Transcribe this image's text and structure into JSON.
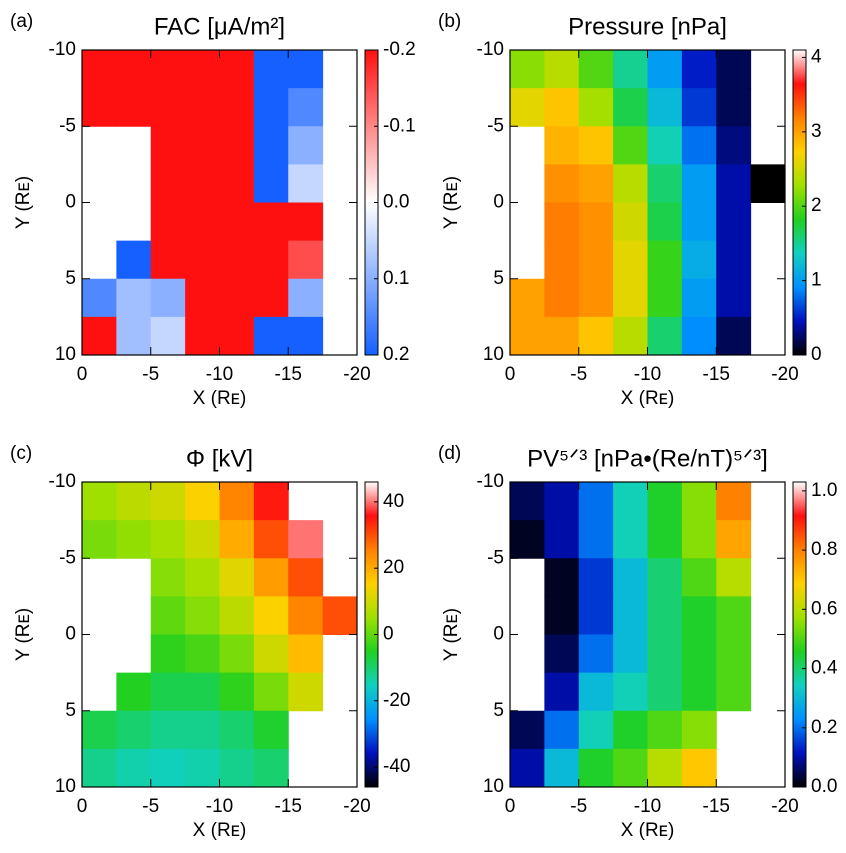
{
  "chart_data": [
    {
      "type": "heatmap",
      "panel_label": "(a)",
      "title": "FAC [μA/m²]",
      "x_label": "X (Rᴇ)",
      "y_label": "Y (Rᴇ)",
      "x": [
        -1.25,
        -3.75,
        -6.25,
        -8.75,
        -11.25,
        -13.75,
        -16.25,
        -18.75
      ],
      "y": [
        -8.75,
        -6.25,
        -3.75,
        -1.25,
        1.25,
        3.75,
        6.25,
        8.75
      ],
      "z": [
        [
          -0.2,
          -0.2,
          -0.2,
          -0.2,
          -0.2,
          0.2,
          0.2,
          null
        ],
        [
          -0.2,
          -0.2,
          -0.2,
          -0.2,
          -0.2,
          0.2,
          0.15,
          null
        ],
        [
          null,
          null,
          -0.2,
          -0.2,
          -0.2,
          0.2,
          0.1,
          null
        ],
        [
          null,
          null,
          -0.2,
          -0.2,
          -0.2,
          0.2,
          0.05,
          null
        ],
        [
          null,
          null,
          -0.2,
          -0.2,
          -0.2,
          -0.2,
          -0.2,
          null
        ],
        [
          null,
          0.2,
          -0.2,
          -0.2,
          -0.2,
          -0.2,
          -0.15,
          null
        ],
        [
          0.15,
          0.08,
          0.1,
          -0.2,
          -0.2,
          -0.2,
          0.1,
          null
        ],
        [
          -0.2,
          0.08,
          0.05,
          -0.2,
          -0.2,
          0.2,
          0.2,
          null
        ]
      ],
      "xlim": [
        0,
        -20
      ],
      "ylim": [
        10,
        -10
      ],
      "xticks": [
        0,
        -5,
        -10,
        -15,
        -20
      ],
      "yticks": [
        -10,
        -5,
        0,
        5,
        10
      ],
      "zlim": [
        0.2,
        -0.2
      ],
      "zticks": [
        -0.2,
        -0.1,
        {
          "value": 0,
          "label": "0.0"
        },
        0.1,
        0.2
      ],
      "colors": [
        "#1560ff",
        "#ffffff",
        "#ff1010"
      ]
    },
    {
      "type": "heatmap",
      "panel_label": "(b)",
      "title": "Pressure [nPa]",
      "x_label": "X (Rᴇ)",
      "y_label": "Y (Rᴇ)",
      "x": [
        -1.25,
        -3.75,
        -6.25,
        -8.75,
        -11.25,
        -13.75,
        -16.25,
        -18.75
      ],
      "y": [
        -8.75,
        -6.25,
        -3.75,
        -1.25,
        1.25,
        3.75,
        6.25,
        8.75
      ],
      "z": [
        [
          2.2,
          2.4,
          2.0,
          1.5,
          1.0,
          0.5,
          0.2,
          null
        ],
        [
          2.6,
          2.8,
          2.3,
          1.7,
          1.2,
          0.6,
          0.2,
          null
        ],
        [
          null,
          2.9,
          2.8,
          2.0,
          1.4,
          0.8,
          0.3,
          null
        ],
        [
          null,
          3.1,
          3.0,
          2.4,
          1.6,
          1.0,
          0.4,
          0.0
        ],
        [
          null,
          3.2,
          3.1,
          2.5,
          1.7,
          1.0,
          0.4,
          null
        ],
        [
          null,
          3.2,
          3.1,
          2.6,
          1.9,
          1.1,
          0.4,
          null
        ],
        [
          3.0,
          3.2,
          3.1,
          2.6,
          1.9,
          1.0,
          0.4,
          null
        ],
        [
          3.0,
          3.0,
          2.8,
          2.4,
          1.6,
          0.9,
          0.2,
          null
        ]
      ],
      "xlim": [
        0,
        -20
      ],
      "ylim": [
        10,
        -10
      ],
      "xticks": [
        0,
        -5,
        -10,
        -15,
        -20
      ],
      "yticks": [
        -10,
        -5,
        0,
        5,
        10
      ],
      "zlim": [
        0,
        4.1
      ],
      "zticks": [
        0,
        1,
        2,
        3,
        4
      ],
      "colors": [
        "#000000",
        "#0010c0",
        "#0090ff",
        "#10d0c0",
        "#20d020",
        "#a0e000",
        "#ffd000",
        "#ff8000",
        "#ff1010",
        "#ffffff"
      ]
    },
    {
      "type": "heatmap",
      "panel_label": "(c)",
      "title": "Φ [kV]",
      "x_label": "X (Rᴇ)",
      "y_label": "Y (Rᴇ)",
      "x": [
        -1.25,
        -3.75,
        -6.25,
        -8.75,
        -11.25,
        -13.75,
        -16.25,
        -18.75
      ],
      "y": [
        -8.75,
        -6.25,
        -3.75,
        -1.25,
        1.25,
        3.75,
        6.25,
        8.75
      ],
      "z": [
        [
          5,
          8,
          10,
          15,
          25,
          35,
          null,
          null
        ],
        [
          2,
          4,
          6,
          10,
          20,
          30,
          40,
          null
        ],
        [
          null,
          null,
          3,
          6,
          12,
          22,
          30,
          null
        ],
        [
          null,
          null,
          0,
          3,
          8,
          15,
          25,
          30
        ],
        [
          null,
          null,
          -4,
          -2,
          2,
          10,
          18,
          null
        ],
        [
          null,
          -5,
          -8,
          -8,
          -4,
          2,
          10,
          null
        ],
        [
          -8,
          -10,
          -12,
          -12,
          -10,
          -6,
          null,
          null
        ],
        [
          -12,
          -14,
          -15,
          -14,
          -12,
          -10,
          null,
          null
        ]
      ],
      "xlim": [
        0,
        -20
      ],
      "ylim": [
        10,
        -10
      ],
      "xticks": [
        0,
        -5,
        -10,
        -15,
        -20
      ],
      "yticks": [
        -10,
        -5,
        0,
        5,
        10
      ],
      "zlim": [
        -46,
        46
      ],
      "zticks": [
        -40,
        -20,
        0,
        20,
        40
      ],
      "colors": [
        "#000000",
        "#0010c0",
        "#0090ff",
        "#10d0c0",
        "#20d020",
        "#a0e000",
        "#ffd000",
        "#ff8000",
        "#ff1010",
        "#ffffff"
      ]
    },
    {
      "type": "heatmap",
      "panel_label": "(d)",
      "title": "PV⁵ᐟ³ [nPa•(Re/nT)⁵ᐟ³]",
      "x_label": "X (Rᴇ)",
      "y_label": "Y (Rᴇ)",
      "x": [
        -1.25,
        -3.75,
        -6.25,
        -8.75,
        -11.25,
        -13.75,
        -16.25,
        -18.75
      ],
      "y": [
        -8.75,
        -6.25,
        -3.75,
        -1.25,
        1.25,
        3.75,
        6.25,
        8.75
      ],
      "z": [
        [
          0.05,
          0.1,
          0.2,
          0.35,
          0.45,
          0.55,
          0.8,
          null
        ],
        [
          0.02,
          0.1,
          0.2,
          0.35,
          0.45,
          0.55,
          0.75,
          null
        ],
        [
          null,
          0.02,
          0.15,
          0.3,
          0.4,
          0.5,
          0.6,
          null
        ],
        [
          null,
          0.02,
          0.15,
          0.3,
          0.4,
          0.45,
          0.5,
          null
        ],
        [
          null,
          0.05,
          0.2,
          0.3,
          0.4,
          0.45,
          0.5,
          null
        ],
        [
          null,
          0.1,
          0.3,
          0.35,
          0.4,
          0.45,
          0.5,
          null
        ],
        [
          0.05,
          0.2,
          0.35,
          0.45,
          0.5,
          0.55,
          null,
          null
        ],
        [
          0.1,
          0.3,
          0.45,
          0.5,
          0.6,
          0.7,
          null,
          null
        ]
      ],
      "xlim": [
        0,
        -20
      ],
      "ylim": [
        10,
        -10
      ],
      "xticks": [
        0,
        -5,
        -10,
        -15,
        -20
      ],
      "yticks": [
        -10,
        -5,
        0,
        5,
        10
      ],
      "zlim": [
        0,
        1.03
      ],
      "zticks": [
        {
          "value": 0,
          "label": "0.0"
        },
        0.2,
        0.4,
        0.6,
        0.8,
        {
          "value": 1,
          "label": "1.0"
        }
      ],
      "colors": [
        "#000000",
        "#0010c0",
        "#0090ff",
        "#10d0c0",
        "#20d020",
        "#a0e000",
        "#ffd000",
        "#ff8000",
        "#ff1010",
        "#ffffff"
      ]
    }
  ]
}
